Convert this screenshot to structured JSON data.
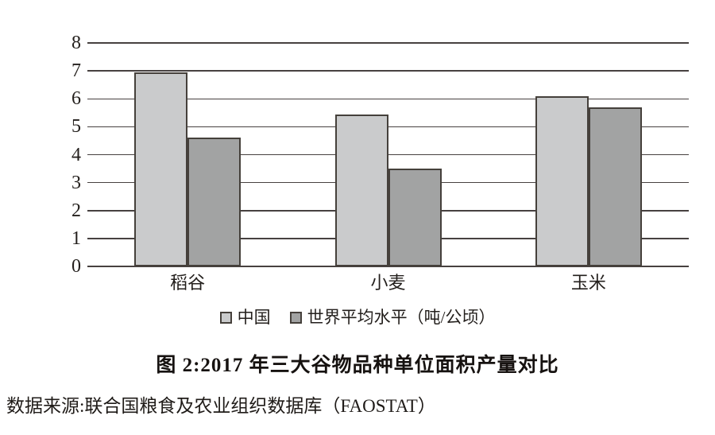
{
  "title": "图 2:2017 年三大谷物品种单位面积产量对比",
  "source": "数据来源:联合国粮食及农业组织数据库（FAOSTAT）",
  "chart_data": {
    "type": "bar",
    "title": "图 2:2017 年三大谷物品种单位面积产量对比",
    "categories": [
      "稻谷",
      "小麦",
      "玉米"
    ],
    "series": [
      {
        "id": "china",
        "name": "中国",
        "color": "#cacbcc",
        "values": [
          6.95,
          5.45,
          6.1
        ]
      },
      {
        "id": "world-average",
        "name": "世界平均水平（吨/公顷）",
        "color": "#a2a3a3",
        "values": [
          4.6,
          3.5,
          5.7
        ]
      }
    ],
    "ylabel": "",
    "xlabel": "",
    "unit": "吨/公顷",
    "ylim": [
      0,
      8
    ],
    "yticks": [
      0,
      1,
      2,
      3,
      4,
      5,
      6,
      7,
      8
    ],
    "grid": "horizontal",
    "legend_position": "bottom",
    "colors": {
      "bar_border": "#45403b",
      "gridline": "#474140",
      "text": "#231f1c",
      "background": "#ffffff"
    }
  }
}
